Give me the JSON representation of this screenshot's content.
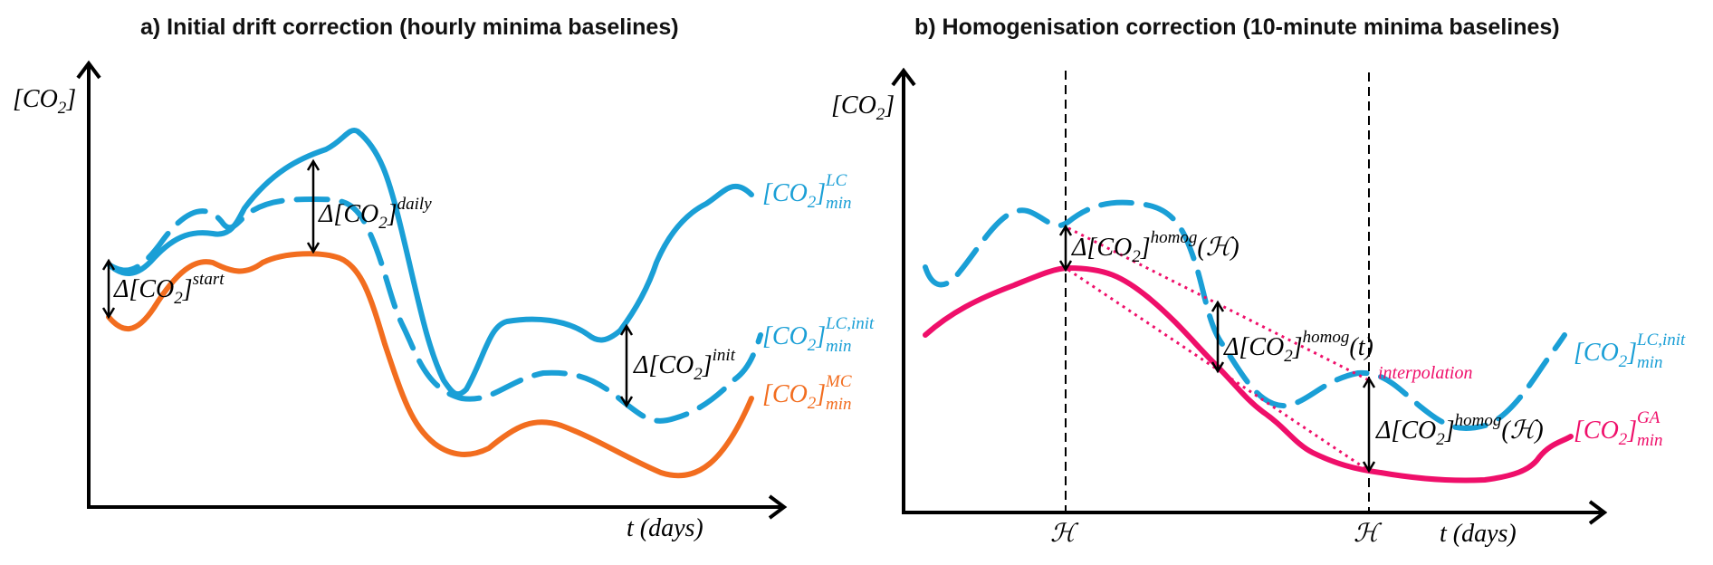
{
  "colors": {
    "lc": "#1a9fd6",
    "mc": "#f26d1f",
    "ga": "#ef0f6a",
    "axis": "#000000"
  },
  "panel_a": {
    "title": "a) Initial drift correction (hourly minima baselines)",
    "y_axis_label": "[CO",
    "y_axis_sub": "2",
    "y_axis_close": "]",
    "x_axis_label": "t (days)",
    "delta_start": {
      "main": "Δ[CO",
      "sub": "2",
      "close": "]",
      "sup": "start"
    },
    "delta_daily": {
      "main": "Δ[CO",
      "sub": "2",
      "close": "]",
      "sup": "daily"
    },
    "delta_init": {
      "main": "Δ[CO",
      "sub": "2",
      "close": "]",
      "sup": "init"
    },
    "legend_lc": {
      "main": "[CO",
      "sub": "2",
      "close": "]",
      "sup": "LC",
      "subscript": "min"
    },
    "legend_lc_init": {
      "main": "[CO",
      "sub": "2",
      "close": "]",
      "sup": "LC,init",
      "subscript": "min"
    },
    "legend_mc": {
      "main": "[CO",
      "sub": "2",
      "close": "]",
      "sup": "MC",
      "subscript": "min"
    }
  },
  "panel_b": {
    "title": "b) Homogenisation correction (10-minute minima baselines)",
    "y_axis_label": "[CO",
    "y_axis_sub": "2",
    "y_axis_close": "]",
    "x_axis_label": "t (days)",
    "h_label_1": "ℋ",
    "h_label_2": "ℋ",
    "delta_homog_h1": {
      "main": "Δ[CO",
      "sub": "2",
      "close": "]",
      "sup": "homog",
      "arg": "(ℋ)"
    },
    "delta_homog_t": {
      "main": "Δ[CO",
      "sub": "2",
      "close": "]",
      "sup": "homog",
      "arg": "(t)"
    },
    "delta_homog_h2": {
      "main": "Δ[CO",
      "sub": "2",
      "close": "]",
      "sup": "homog",
      "arg": "(ℋ)"
    },
    "interpolation": "interpolation",
    "legend_lc_init": {
      "main": "[CO",
      "sub": "2",
      "close": "]",
      "sup": "LC,init",
      "subscript": "min"
    },
    "legend_ga": {
      "main": "[CO",
      "sub": "2",
      "close": "]",
      "sup": "GA",
      "subscript": "min"
    }
  }
}
